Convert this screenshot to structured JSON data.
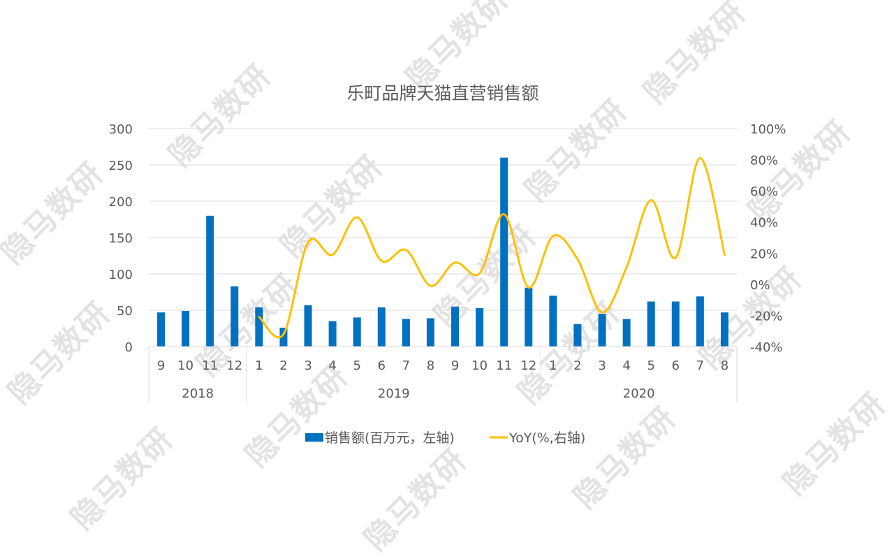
{
  "chart_data": {
    "type": "bar+line",
    "title": "乐町品牌天猫直营销售额",
    "categories": [
      "9",
      "10",
      "11",
      "12",
      "1",
      "2",
      "3",
      "4",
      "5",
      "6",
      "7",
      "8",
      "9",
      "10",
      "11",
      "12",
      "1",
      "2",
      "3",
      "4",
      "5",
      "6",
      "7",
      "8"
    ],
    "category_groups": [
      {
        "label": "2018",
        "start": 0,
        "count": 4
      },
      {
        "label": "2019",
        "start": 4,
        "count": 12
      },
      {
        "label": "2020",
        "start": 16,
        "count": 8
      }
    ],
    "series": [
      {
        "name": "销售额(百万元，左轴)",
        "type": "bar",
        "axis": "left",
        "color": "#0070C0",
        "values": [
          47,
          49,
          180,
          83,
          54,
          26,
          57,
          35,
          40,
          54,
          38,
          39,
          55,
          53,
          260,
          81,
          70,
          31,
          45,
          38,
          62,
          62,
          69,
          47
        ]
      },
      {
        "name": "YoY(%,右轴)",
        "type": "line",
        "axis": "right",
        "color": "#FFC000",
        "values": [
          null,
          null,
          null,
          null,
          -21,
          -32,
          27,
          19,
          43,
          15,
          22,
          -1,
          14,
          7,
          45,
          -2,
          31,
          16,
          -18,
          11,
          54,
          17,
          81,
          19
        ]
      }
    ],
    "left_axis": {
      "ticks": [
        "300",
        "250",
        "200",
        "150",
        "100",
        "50",
        "0"
      ],
      "ylim": [
        0,
        300
      ]
    },
    "right_axis": {
      "ticks": [
        "100%",
        "80%",
        "60%",
        "40%",
        "20%",
        "0%",
        "-20%",
        "-40%"
      ],
      "ylim": [
        -40,
        100
      ]
    },
    "grid": true,
    "legend_position": "bottom",
    "xlabel": "",
    "ylabel": ""
  },
  "legend": {
    "bar_label": "销售额(百万元，左轴)",
    "line_label": "YoY(%,右轴)"
  },
  "watermark": "隐马数研"
}
